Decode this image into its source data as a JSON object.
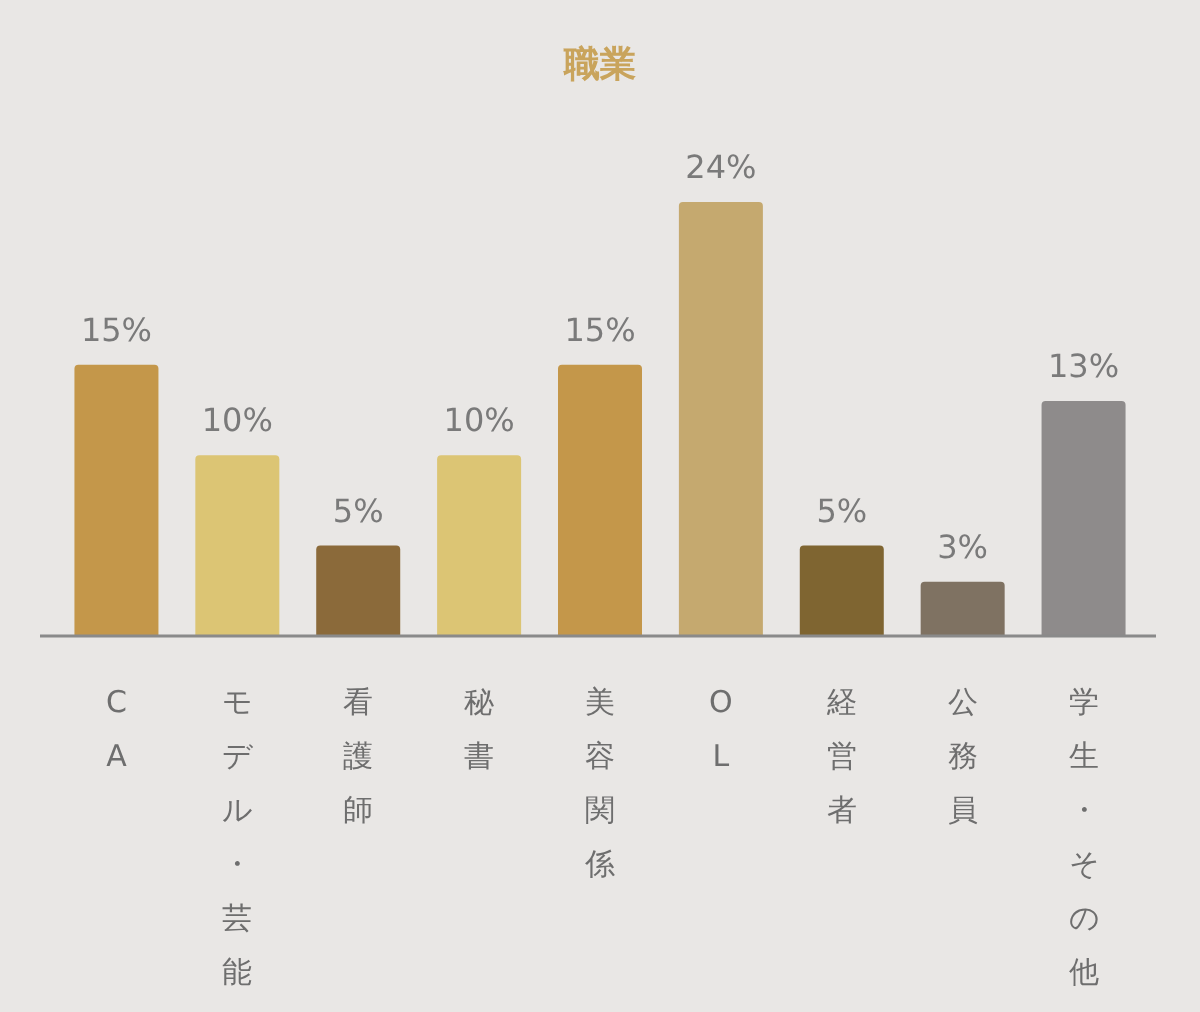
{
  "chart_data": {
    "type": "bar",
    "title": "職業",
    "categories": [
      "CA",
      "モデル・芸能",
      "看護師",
      "秘書",
      "美容関係",
      "OL",
      "経営者",
      "公務員",
      "学生・その他"
    ],
    "values": [
      15,
      10,
      5,
      10,
      15,
      24,
      5,
      3,
      13
    ],
    "colors": [
      "#c4974a",
      "#dcc574",
      "#8b6a3a",
      "#dcc574",
      "#c4974a",
      "#c5a96f",
      "#7f6531",
      "#7f7262",
      "#8e8b8b"
    ],
    "value_labels": [
      "15%",
      "10%",
      "5%",
      "10%",
      "15%",
      "24%",
      "5%",
      "3%",
      "13%"
    ]
  }
}
